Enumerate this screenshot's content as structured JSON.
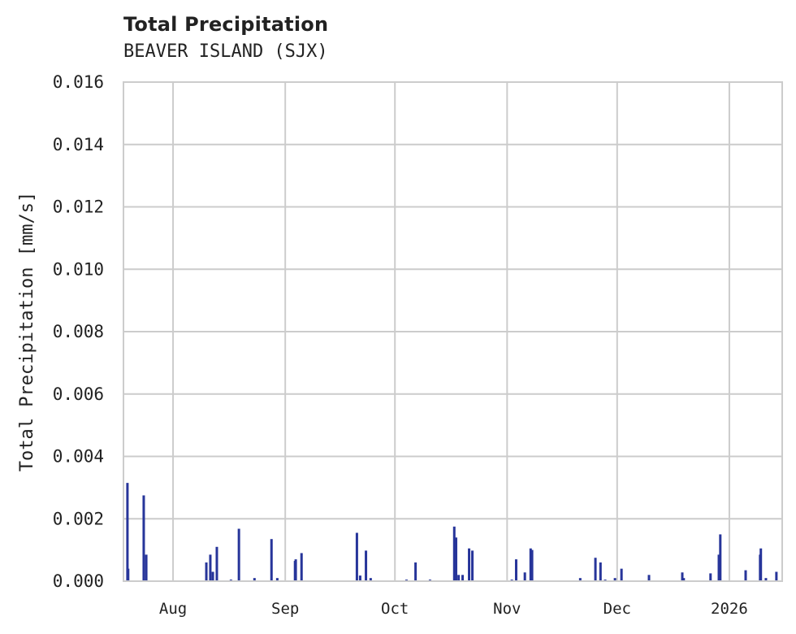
{
  "header": {
    "title": "Total Precipitation",
    "subtitle": "BEAVER ISLAND (SJX)"
  },
  "colors": {
    "bar": "#27359a",
    "grid": "#cccccc",
    "axis": "#cccccc",
    "text": "#222222"
  },
  "chart_data": {
    "type": "bar",
    "title": "Total Precipitation",
    "subtitle": "BEAVER ISLAND (SJX)",
    "xlabel": "",
    "ylabel": "Total Precipitation [mm/s]",
    "ylim": [
      0.0,
      0.016
    ],
    "yticks": [
      "0.000",
      "0.002",
      "0.004",
      "0.006",
      "0.008",
      "0.010",
      "0.012",
      "0.014",
      "0.016"
    ],
    "xticks": [
      "Aug",
      "Sep",
      "Oct",
      "Nov",
      "Dec",
      "2026"
    ],
    "xrange_days": [
      0,
      182
    ],
    "xtick_days": [
      13.7,
      44.7,
      75.0,
      106.0,
      136.4,
      167.4
    ],
    "grid": true,
    "legend": null,
    "series": [
      {
        "name": "Total Precipitation",
        "points": [
          {
            "day": 1.1,
            "value": 0.00315
          },
          {
            "day": 1.3,
            "value": 0.0004
          },
          {
            "day": 5.6,
            "value": 0.00275
          },
          {
            "day": 6.3,
            "value": 0.00085
          },
          {
            "day": 22.9,
            "value": 0.0006
          },
          {
            "day": 24.0,
            "value": 0.00085
          },
          {
            "day": 24.7,
            "value": 0.0003
          },
          {
            "day": 25.8,
            "value": 0.0011
          },
          {
            "day": 29.7,
            "value": 5e-05
          },
          {
            "day": 31.9,
            "value": 0.00168
          },
          {
            "day": 36.2,
            "value": 0.0001
          },
          {
            "day": 40.9,
            "value": 0.00135
          },
          {
            "day": 42.5,
            "value": 0.0001
          },
          {
            "day": 47.4,
            "value": 0.00065
          },
          {
            "day": 47.6,
            "value": 0.0007
          },
          {
            "day": 49.2,
            "value": 0.0009
          },
          {
            "day": 64.5,
            "value": 0.00155
          },
          {
            "day": 65.4,
            "value": 0.00018
          },
          {
            "day": 67.0,
            "value": 0.00098
          },
          {
            "day": 68.3,
            "value": 0.0001
          },
          {
            "day": 78.2,
            "value": 5e-05
          },
          {
            "day": 80.7,
            "value": 0.0006
          },
          {
            "day": 84.7,
            "value": 5e-05
          },
          {
            "day": 91.4,
            "value": 0.00175
          },
          {
            "day": 91.9,
            "value": 0.0014
          },
          {
            "day": 92.6,
            "value": 0.0002
          },
          {
            "day": 93.7,
            "value": 0.0002
          },
          {
            "day": 95.5,
            "value": 0.00105
          },
          {
            "day": 96.4,
            "value": 0.00098
          },
          {
            "day": 107.3,
            "value": 5e-05
          },
          {
            "day": 108.5,
            "value": 0.0007
          },
          {
            "day": 110.9,
            "value": 0.00028
          },
          {
            "day": 112.5,
            "value": 0.00105
          },
          {
            "day": 112.9,
            "value": 0.001
          },
          {
            "day": 126.2,
            "value": 0.0001
          },
          {
            "day": 130.4,
            "value": 0.00075
          },
          {
            "day": 131.8,
            "value": 0.0006
          },
          {
            "day": 133.1,
            "value": 5e-05
          },
          {
            "day": 135.8,
            "value": 0.0001
          },
          {
            "day": 137.6,
            "value": 0.0004
          },
          {
            "day": 145.2,
            "value": 0.0002
          },
          {
            "day": 154.4,
            "value": 0.00028
          },
          {
            "day": 154.8,
            "value": 0.0001
          },
          {
            "day": 162.2,
            "value": 0.00025
          },
          {
            "day": 164.5,
            "value": 0.00085
          },
          {
            "day": 164.9,
            "value": 0.0015
          },
          {
            "day": 171.9,
            "value": 0.00035
          },
          {
            "day": 175.9,
            "value": 0.00085
          },
          {
            "day": 176.1,
            "value": 0.00105
          },
          {
            "day": 177.5,
            "value": 0.0001
          },
          {
            "day": 180.4,
            "value": 0.0003
          }
        ]
      }
    ]
  }
}
